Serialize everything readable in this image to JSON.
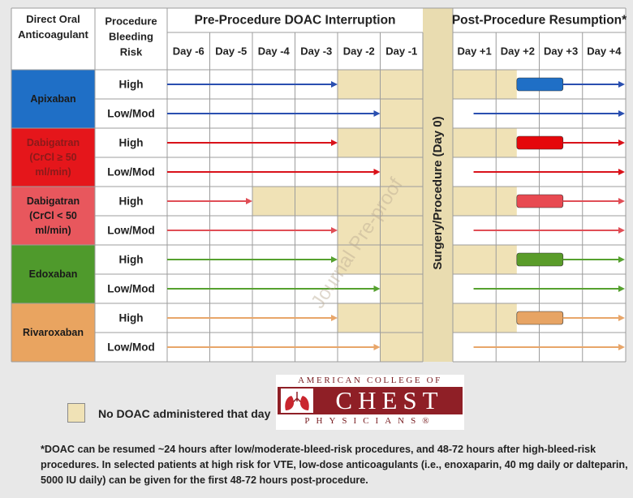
{
  "header": {
    "col_drug": "Direct Oral Anticoagulant",
    "col_risk": "Procedure Bleeding Risk",
    "pre_title": "Pre-Procedure DOAC Interruption",
    "post_title": "Post-Procedure Resumption*",
    "procedure_label": "Surgery/Procedure (Day 0)",
    "pre_days": [
      "Day -6",
      "Day -5",
      "Day -4",
      "Day -3",
      "Day -2",
      "Day -1"
    ],
    "post_days": [
      "Day +1",
      "Day +2",
      "Day +3",
      "Day +4"
    ]
  },
  "drugs": [
    {
      "name": "Apixaban",
      "color": "#1f6fc6",
      "text_color": "#1a1a1a",
      "arrow_color": "#2a4fb0",
      "bar_color": "#1f6fc6"
    },
    {
      "name": "Dabigatran (CrCl ≥ 50 ml/min)",
      "color": "#e5161b",
      "text_color": "#8b1a1a",
      "arrow_color": "#d9121a",
      "bar_color": "#e5070b"
    },
    {
      "name": "Dabigatran (CrCl < 50 ml/min)",
      "color": "#e8575d",
      "text_color": "#1a1a1a",
      "arrow_color": "#e04e56",
      "bar_color": "#e84a52"
    },
    {
      "name": "Edoxaban",
      "color": "#4f9a2c",
      "text_color": "#1a1a1a",
      "arrow_color": "#56a12f",
      "bar_color": "#5a9c2a"
    },
    {
      "name": "Rivaroxaban",
      "color": "#e9a460",
      "text_color": "#1a1a1a",
      "arrow_color": "#e8a66a",
      "bar_color": "#e7a464"
    }
  ],
  "rows": [
    {
      "drug": 0,
      "risk": "High",
      "pre_stop_day": -3,
      "post_start_day": 1,
      "bar_days": [
        2,
        3
      ]
    },
    {
      "drug": 0,
      "risk": "Low/Mod",
      "pre_stop_day": -2,
      "post_start_day": 1,
      "bar_days": null
    },
    {
      "drug": 1,
      "risk": "High",
      "pre_stop_day": -3,
      "post_start_day": 1,
      "bar_days": [
        2,
        3
      ]
    },
    {
      "drug": 1,
      "risk": "Low/Mod",
      "pre_stop_day": -2,
      "post_start_day": 1,
      "bar_days": null
    },
    {
      "drug": 2,
      "risk": "High",
      "pre_stop_day": -5,
      "post_start_day": 1,
      "bar_days": [
        2,
        3
      ]
    },
    {
      "drug": 2,
      "risk": "Low/Mod",
      "pre_stop_day": -3,
      "post_start_day": 1,
      "bar_days": null
    },
    {
      "drug": 3,
      "risk": "High",
      "pre_stop_day": -3,
      "post_start_day": 1,
      "bar_days": [
        2,
        3
      ]
    },
    {
      "drug": 3,
      "risk": "Low/Mod",
      "pre_stop_day": -2,
      "post_start_day": 1,
      "bar_days": null
    },
    {
      "drug": 4,
      "risk": "High",
      "pre_stop_day": -3,
      "post_start_day": 1,
      "bar_days": [
        2,
        3
      ]
    },
    {
      "drug": 4,
      "risk": "Low/Mod",
      "pre_stop_day": -2,
      "post_start_day": 1,
      "bar_days": null
    }
  ],
  "colors": {
    "no_doac": "#f0e2b6",
    "procedure_col": "#e9dcb0",
    "grid": "#9c9c9c",
    "background": "#e8e8e8"
  },
  "watermark": "Journal Pre-proof",
  "legend": {
    "label": "No DOAC administered that day"
  },
  "logo": {
    "top": "AMERICAN COLLEGE OF",
    "main": "CHEST",
    "bottom": "PHYSICIANS®"
  },
  "footnote": "*DOAC can be resumed ~24 hours after low/moderate-bleed-risk procedures, and 48-72 hours after high-bleed-risk procedures. In selected patients at high risk for VTE, low-dose anticoagulants (i.e., enoxaparin, 40 mg daily or dalteparin, 5000 IU daily) can be given for the first 48-72 hours post-procedure."
}
